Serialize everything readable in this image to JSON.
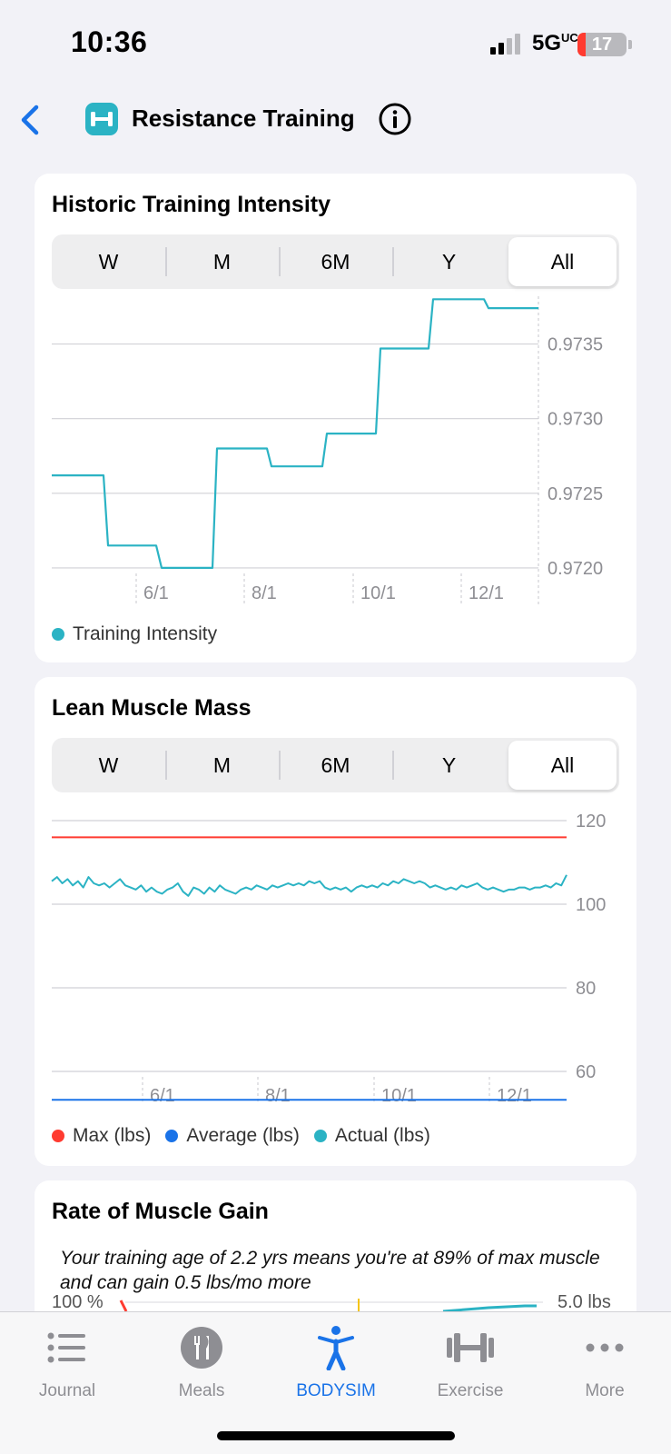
{
  "status_bar": {
    "time": "10:36",
    "network": "5G UC",
    "battery": "17",
    "battery_level": 0.17,
    "battery_color": "#ff3b30"
  },
  "nav": {
    "title": "Resistance Training",
    "app_icon_color": "#2bb3c4",
    "accent": "#1a73e8"
  },
  "segments": [
    "W",
    "M",
    "6M",
    "Y",
    "All"
  ],
  "selected_segment": "All",
  "intensity_card": {
    "title": "Historic Training Intensity",
    "legend": [
      {
        "label": "Training Intensity",
        "color": "#2bb3c4"
      }
    ]
  },
  "lean_card": {
    "title": "Lean Muscle Mass",
    "legend": [
      {
        "label": "Max (lbs)",
        "color": "#ff3b30"
      },
      {
        "label": "Average (lbs)",
        "color": "#1a73e8"
      },
      {
        "label": "Actual (lbs)",
        "color": "#2bb3c4"
      }
    ]
  },
  "gain_card": {
    "title": "Rate of Muscle Gain",
    "insight": "Your training age of 2.2 yrs means you're at 89% of max muscle and can gain 0.5 lbs/mo more",
    "left_axis_top": "100 %",
    "right_axis_top": "5.0 lbs"
  },
  "chart_data": [
    {
      "type": "line",
      "title": "Historic Training Intensity",
      "x_ticks": [
        "6/1",
        "8/1",
        "10/1",
        "12/1"
      ],
      "y_ticks": [
        0.972,
        0.9725,
        0.973,
        0.9735
      ],
      "y_tick_labels": [
        "0.9720",
        "0.9725",
        "0.9730",
        "0.9735"
      ],
      "ylim": [
        0.97175,
        0.97382
      ],
      "grid": true,
      "step": true,
      "series": [
        {
          "name": "Training Intensity",
          "color": "#2bb3c4",
          "x": [
            "4/1",
            "5/1",
            "5/15",
            "6/1",
            "6/8",
            "7/1",
            "7/15",
            "8/1",
            "8/15",
            "9/1",
            "9/15",
            "10/1",
            "10/15",
            "11/1",
            "11/15",
            "12/1",
            "12/15",
            "1/1"
          ],
          "values": [
            0.97262,
            0.97262,
            0.97215,
            0.97215,
            0.972,
            0.972,
            0.9728,
            0.9728,
            0.97268,
            0.97268,
            0.9729,
            0.9729,
            0.97347,
            0.97347,
            0.9738,
            0.9738,
            0.97374,
            0.97374
          ]
        }
      ]
    },
    {
      "type": "line",
      "title": "Lean Muscle Mass",
      "x_ticks": [
        "6/1",
        "8/1",
        "10/1",
        "12/1"
      ],
      "y_ticks": [
        60,
        80,
        100,
        120
      ],
      "y_tick_labels": [
        "60",
        "80",
        "100",
        "120"
      ],
      "ylim": [
        50,
        125
      ],
      "grid": true,
      "series": [
        {
          "name": "Max (lbs)",
          "color": "#ff3b30",
          "values": [
            116,
            116
          ]
        },
        {
          "name": "Average (lbs)",
          "color": "#1a73e8",
          "values": [
            53.2,
            53.2
          ]
        },
        {
          "name": "Actual (lbs)",
          "color": "#2bb3c4",
          "values": [
            105.5,
            106.5,
            105,
            106,
            104.5,
            105.5,
            104,
            106.5,
            105,
            104.5,
            105,
            104,
            105,
            106,
            104.5,
            104,
            103.5,
            104.5,
            103,
            104,
            103,
            102.5,
            103.5,
            104,
            105,
            103,
            102,
            104,
            103.5,
            102.5,
            104,
            103,
            104.5,
            103.5,
            103,
            102.5,
            103.5,
            104,
            103.5,
            104.5,
            104,
            103.5,
            104.5,
            104,
            104.5,
            105,
            104.5,
            105,
            104.5,
            105.5,
            105,
            105.5,
            104,
            103.5,
            104,
            103.5,
            104,
            103,
            104,
            104.5,
            104,
            104.5,
            104,
            105,
            104.5,
            105.5,
            105,
            106,
            105.5,
            105,
            105.5,
            105,
            104,
            104.5,
            104,
            103.5,
            104,
            103.5,
            104.5,
            104,
            104.5,
            105,
            104,
            103.5,
            104,
            103.5,
            103,
            103.5,
            103.5,
            104,
            104,
            103.5,
            104,
            104,
            104.5,
            104,
            105,
            104.5,
            107
          ]
        }
      ]
    }
  ],
  "tabs": [
    {
      "label": "Journal",
      "icon": "list-icon"
    },
    {
      "label": "Meals",
      "icon": "utensils-icon"
    },
    {
      "label": "BODYSIM",
      "icon": "body-icon"
    },
    {
      "label": "Exercise",
      "icon": "dumbbell-icon"
    },
    {
      "label": "More",
      "icon": "ellipsis-icon"
    }
  ]
}
